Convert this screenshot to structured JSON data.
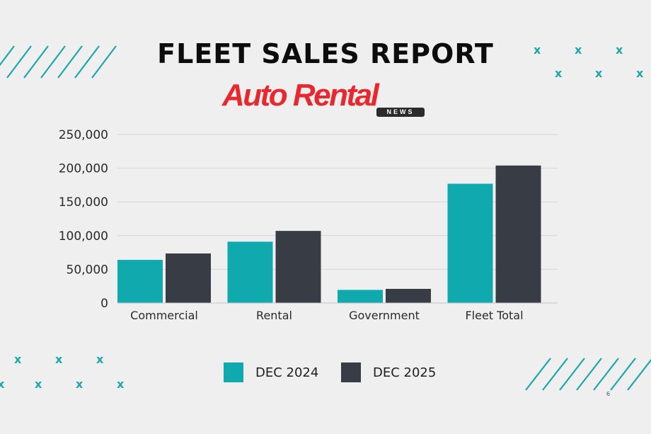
{
  "header": {
    "title": "FLEET SALES REPORT",
    "logo_text": "Auto Rental",
    "logo_news": "NEWS"
  },
  "colors": {
    "background": "#efefef",
    "series_2024": "#10a9ad",
    "series_2025": "#383c44",
    "logo_red": "#e8282e",
    "decor_teal": "#1aa7ad"
  },
  "chart_data": {
    "type": "bar",
    "categories": [
      "Commercial",
      "Rental",
      "Government",
      "Fleet Total"
    ],
    "series": [
      {
        "name": "DEC 2024",
        "values": [
          64000,
          91000,
          19500,
          177000
        ]
      },
      {
        "name": "DEC 2025",
        "values": [
          73500,
          107000,
          21000,
          204000
        ]
      }
    ],
    "ylim": [
      0,
      250000
    ],
    "yticks": [
      "0",
      "50,000",
      "100,000",
      "150,000",
      "200,000",
      "250,000"
    ],
    "grid": true,
    "legend_position": "bottom",
    "title": "",
    "xlabel": "",
    "ylabel": ""
  },
  "legend": {
    "item_2024": "DEC 2024",
    "item_2025": "DEC 2025"
  },
  "footer": {
    "page_number": "6"
  }
}
